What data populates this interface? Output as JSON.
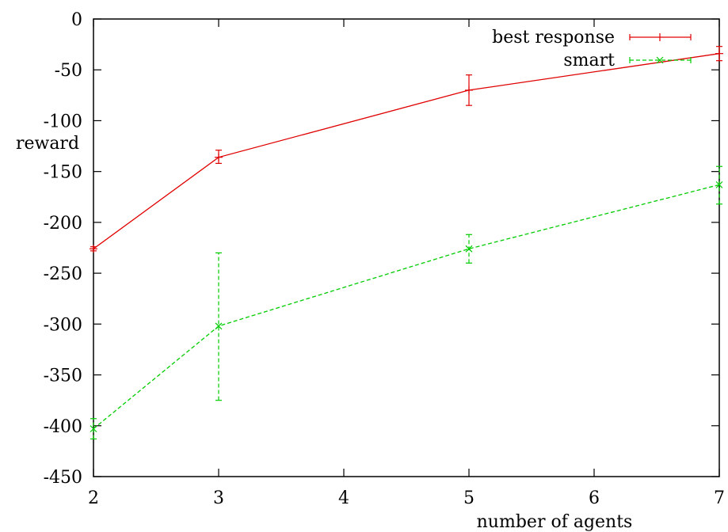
{
  "chart_data": {
    "type": "line",
    "title": "",
    "xlabel": "number of agents",
    "ylabel": "reward",
    "xlim": [
      2,
      7
    ],
    "ylim": [
      -450,
      0
    ],
    "xticks": [
      2,
      3,
      4,
      5,
      6,
      7
    ],
    "yticks": [
      0,
      -50,
      -100,
      -150,
      -200,
      -250,
      -300,
      -350,
      -400,
      -450
    ],
    "grid": false,
    "legend_position": "top-right",
    "series": [
      {
        "name": "best response",
        "color": "#e00000",
        "dash": "solid",
        "marker": "plus",
        "points": [
          {
            "x": 2,
            "y": -226,
            "low": -228,
            "high": -224
          },
          {
            "x": 3,
            "y": -136,
            "low": -142,
            "high": -129
          },
          {
            "x": 5,
            "y": -70,
            "low": -85,
            "high": -55
          },
          {
            "x": 7,
            "y": -34,
            "low": -41,
            "high": -27
          }
        ]
      },
      {
        "name": "smart",
        "color": "#00cc00",
        "dash": "dashed",
        "marker": "cross",
        "points": [
          {
            "x": 2,
            "y": -403,
            "low": -413,
            "high": -393
          },
          {
            "x": 3,
            "y": -302,
            "low": -375,
            "high": -230
          },
          {
            "x": 5,
            "y": -226,
            "low": -240,
            "high": -212
          },
          {
            "x": 7,
            "y": -163,
            "low": -182,
            "high": -145
          }
        ]
      }
    ]
  }
}
